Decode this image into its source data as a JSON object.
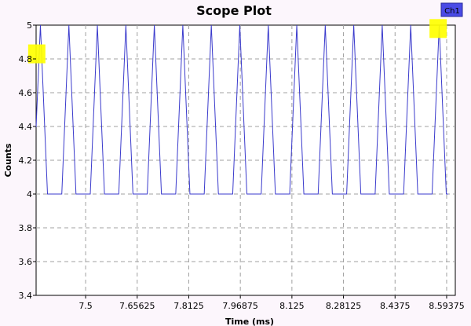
{
  "chart_data": {
    "type": "line",
    "title": "Scope Plot",
    "xlabel": "Time (ms)",
    "ylabel": "Counts",
    "xlim": [
      7.35,
      8.62
    ],
    "ylim": [
      3.4,
      5.0
    ],
    "x_ticks": [
      7.5,
      7.65625,
      7.8125,
      7.96875,
      8.125,
      8.28125,
      8.4375,
      8.59375
    ],
    "x_tick_labels": [
      "7.5",
      "7.65625",
      "7.8125",
      "7.96875",
      "8.125",
      "8.28125",
      "8.4375",
      "8.59375"
    ],
    "y_ticks": [
      3.4,
      3.6,
      3.8,
      4.0,
      4.2,
      4.4,
      4.6,
      4.8,
      5.0
    ],
    "y_tick_labels": [
      "3.4",
      "3.6",
      "3.8",
      "4",
      "4.2",
      "4.4",
      "4.6",
      "4.8",
      "5"
    ],
    "grid": true,
    "legend_position": "top-right",
    "series": [
      {
        "name": "Ch1",
        "color": "#3a3acc",
        "waveform": "triangular pulse train between 4 and 5",
        "baseline": 4.0,
        "peak": 5.0,
        "peak_times": [
          7.363,
          7.4493,
          7.5356,
          7.6219,
          7.7082,
          7.7945,
          7.8808,
          7.9671,
          8.0534,
          8.1397,
          8.226,
          8.3123,
          8.3986,
          8.4849,
          8.5712
        ],
        "pulse_half_width": 0.0215,
        "final_value": 4.0
      }
    ],
    "markers": [
      {
        "x": 7.352,
        "y": 4.83,
        "color": "#ffff00"
      },
      {
        "x": 8.568,
        "y": 4.98,
        "color": "#ffff00"
      }
    ]
  }
}
